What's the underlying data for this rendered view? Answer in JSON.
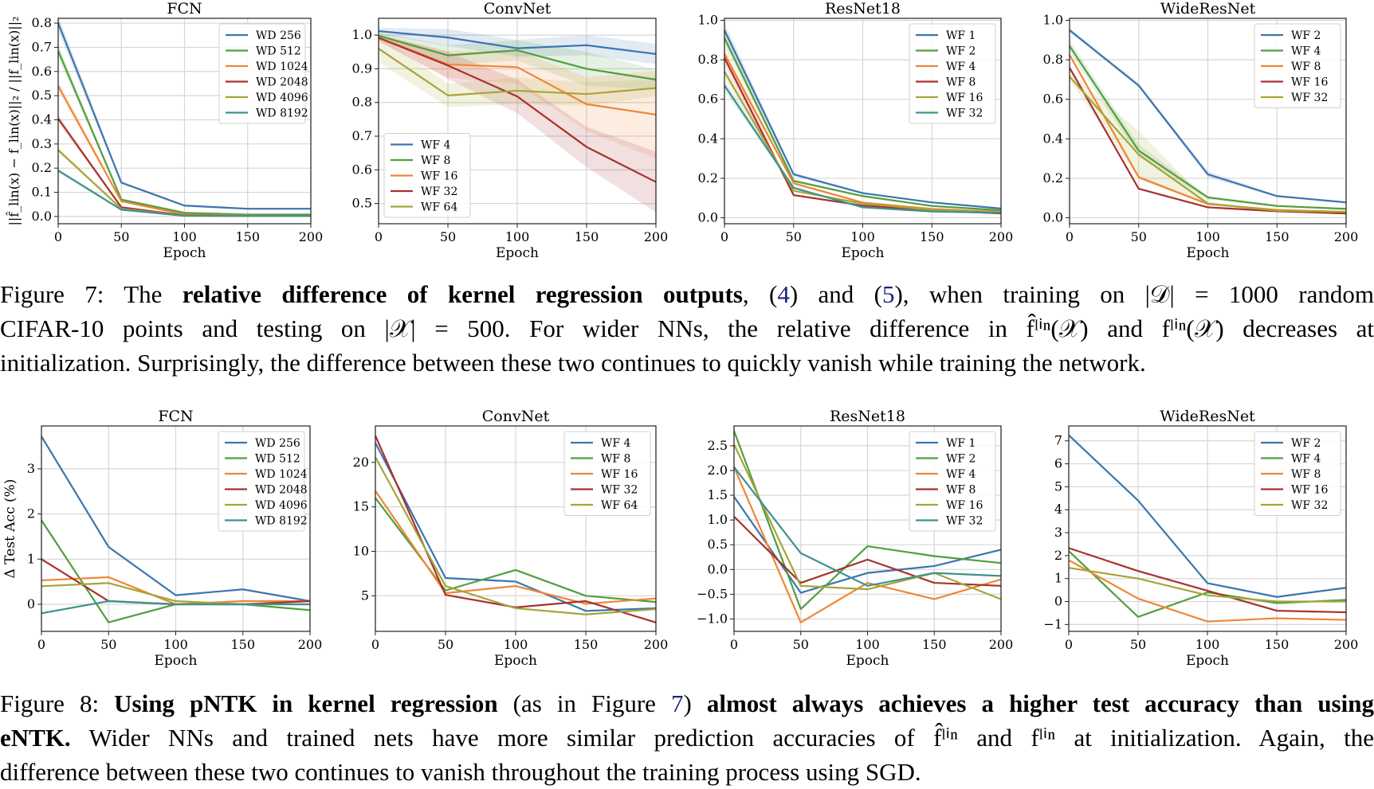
{
  "chart_data": [
    {
      "id": "fig7-fcn",
      "type": "line",
      "title": "FCN",
      "xlabel": "Epoch",
      "ylabel": "||f̂_lin(x) − f_lin(x)||₂ / ||f_lin(x)||₂",
      "x": [
        0,
        50,
        100,
        150,
        200
      ],
      "xlim": [
        0,
        200
      ],
      "ylim": [
        -0.03,
        0.82
      ],
      "xticks": [
        0,
        50,
        100,
        150,
        200
      ],
      "yticks": [
        0.0,
        0.1,
        0.2,
        0.3,
        0.4,
        0.5,
        0.6,
        0.7,
        0.8
      ],
      "ytick_labels": [
        "0.0",
        "0.1",
        "0.2",
        "0.3",
        "0.4",
        "0.5",
        "0.6",
        "0.7",
        "0.8"
      ],
      "grid": true,
      "legend": "top-right",
      "shaded_bands": true,
      "series": [
        {
          "name": "WD 256",
          "color": "#3b75af",
          "values": [
            0.8,
            0.14,
            0.045,
            0.032,
            0.032
          ]
        },
        {
          "name": "WD 512",
          "color": "#519e3e",
          "values": [
            0.685,
            0.07,
            0.015,
            0.008,
            0.008
          ]
        },
        {
          "name": "WD 1024",
          "color": "#ef8636",
          "values": [
            0.54,
            0.063,
            0.008,
            0.004,
            0.003
          ]
        },
        {
          "name": "WD 2048",
          "color": "#a8312d",
          "values": [
            0.405,
            0.038,
            0.004,
            0.002,
            0.002
          ]
        },
        {
          "name": "WD 4096",
          "color": "#a6a538",
          "values": [
            0.275,
            0.032,
            0.003,
            0.002,
            0.002
          ]
        },
        {
          "name": "WD 8192",
          "color": "#3d938d",
          "values": [
            0.19,
            0.028,
            0.003,
            0.002,
            0.002
          ]
        }
      ]
    },
    {
      "id": "fig7-convnet",
      "type": "line",
      "title": "ConvNet",
      "xlabel": "Epoch",
      "ylabel": "",
      "x": [
        0,
        50,
        100,
        150,
        200
      ],
      "xlim": [
        0,
        200
      ],
      "ylim": [
        0.44,
        1.05
      ],
      "xticks": [
        0,
        50,
        100,
        150,
        200
      ],
      "yticks": [
        0.5,
        0.6,
        0.7,
        0.8,
        0.9,
        1.0
      ],
      "ytick_labels": [
        "0.5",
        "0.6",
        "0.7",
        "0.8",
        "0.9",
        "1.0"
      ],
      "grid": true,
      "legend": "bottom-left",
      "shaded_bands": true,
      "series": [
        {
          "name": "WF 4",
          "color": "#3b75af",
          "values": [
            1.012,
            0.993,
            0.961,
            0.97,
            0.944
          ],
          "band": [
            0.01,
            0.025,
            0.025,
            0.03,
            0.03
          ]
        },
        {
          "name": "WF 8",
          "color": "#519e3e",
          "values": [
            0.998,
            0.94,
            0.955,
            0.9,
            0.868
          ],
          "band": [
            0.01,
            0.03,
            0.03,
            0.05,
            0.03
          ]
        },
        {
          "name": "WF 16",
          "color": "#ef8636",
          "values": [
            0.993,
            0.913,
            0.905,
            0.795,
            0.764
          ],
          "band": [
            0.01,
            0.04,
            0.05,
            0.08,
            0.13
          ]
        },
        {
          "name": "WF 32",
          "color": "#a8312d",
          "values": [
            0.992,
            0.91,
            0.818,
            0.668,
            0.564
          ],
          "band": [
            0.01,
            0.04,
            0.05,
            0.06,
            0.09
          ]
        },
        {
          "name": "WF 64",
          "color": "#a6a538",
          "values": [
            0.96,
            0.821,
            0.835,
            0.825,
            0.843
          ],
          "band": [
            0.04,
            0.035,
            0.04,
            0.035,
            0.025
          ]
        }
      ]
    },
    {
      "id": "fig7-resnet18",
      "type": "line",
      "title": "ResNet18",
      "xlabel": "Epoch",
      "ylabel": "",
      "x": [
        0,
        50,
        100,
        150,
        200
      ],
      "xlim": [
        0,
        200
      ],
      "ylim": [
        -0.03,
        1.01
      ],
      "xticks": [
        0,
        50,
        100,
        150,
        200
      ],
      "yticks": [
        0.0,
        0.2,
        0.4,
        0.6,
        0.8,
        1.0
      ],
      "ytick_labels": [
        "0.0",
        "0.2",
        "0.4",
        "0.6",
        "0.8",
        "1.0"
      ],
      "grid": true,
      "legend": "top-right",
      "shaded_bands": true,
      "series": [
        {
          "name": "WF 1",
          "color": "#3b75af",
          "values": [
            0.95,
            0.22,
            0.125,
            0.078,
            0.047
          ]
        },
        {
          "name": "WF 2",
          "color": "#519e3e",
          "values": [
            0.91,
            0.187,
            0.11,
            0.06,
            0.038
          ]
        },
        {
          "name": "WF 4",
          "color": "#ef8636",
          "values": [
            0.83,
            0.175,
            0.077,
            0.045,
            0.03
          ]
        },
        {
          "name": "WF 8",
          "color": "#a8312d",
          "values": [
            0.81,
            0.115,
            0.062,
            0.038,
            0.022
          ]
        },
        {
          "name": "WF 16",
          "color": "#a6a538",
          "values": [
            0.74,
            0.137,
            0.072,
            0.04,
            0.027
          ]
        },
        {
          "name": "WF 32",
          "color": "#3d938d",
          "values": [
            0.67,
            0.152,
            0.053,
            0.032,
            0.025
          ]
        }
      ]
    },
    {
      "id": "fig7-wideresnet",
      "type": "line",
      "title": "WideResNet",
      "xlabel": "Epoch",
      "ylabel": "",
      "x": [
        0,
        50,
        100,
        150,
        200
      ],
      "xlim": [
        0,
        200
      ],
      "ylim": [
        -0.03,
        1.01
      ],
      "xticks": [
        0,
        50,
        100,
        150,
        200
      ],
      "yticks": [
        0.0,
        0.2,
        0.4,
        0.6,
        0.8,
        1.0
      ],
      "ytick_labels": [
        "0.0",
        "0.2",
        "0.4",
        "0.6",
        "0.8",
        "1.0"
      ],
      "grid": true,
      "legend": "top-right",
      "shaded_bands": true,
      "series": [
        {
          "name": "WF 2",
          "color": "#3b75af",
          "values": [
            0.95,
            0.67,
            0.22,
            0.11,
            0.078
          ],
          "band": [
            0.01,
            0.01,
            0.015,
            0.005,
            0.005
          ]
        },
        {
          "name": "WF 4",
          "color": "#519e3e",
          "values": [
            0.87,
            0.34,
            0.103,
            0.06,
            0.045
          ],
          "band": [
            0.03,
            0.03,
            0.01,
            0.005,
            0.005
          ]
        },
        {
          "name": "WF 8",
          "color": "#ef8636",
          "values": [
            0.825,
            0.205,
            0.07,
            0.04,
            0.03
          ],
          "band": [
            0.01,
            0.01,
            0.005,
            0.003,
            0.003
          ]
        },
        {
          "name": "WF 16",
          "color": "#a8312d",
          "values": [
            0.76,
            0.147,
            0.053,
            0.033,
            0.022
          ],
          "band": [
            0.01,
            0.005,
            0.003,
            0.002,
            0.002
          ]
        },
        {
          "name": "WF 32",
          "color": "#a6a538",
          "values": [
            0.715,
            0.32,
            0.072,
            0.036,
            0.03
          ],
          "band": [
            0.02,
            0.12,
            0.01,
            0.003,
            0.003
          ]
        }
      ]
    },
    {
      "id": "fig8-fcn",
      "type": "line",
      "title": "FCN",
      "xlabel": "Epoch",
      "ylabel": "Δ Test Acc (%)",
      "x": [
        0,
        50,
        100,
        150,
        200
      ],
      "xlim": [
        0,
        200
      ],
      "ylim": [
        -0.6,
        3.95
      ],
      "xticks": [
        0,
        50,
        100,
        150,
        200
      ],
      "yticks": [
        0,
        1,
        2,
        3
      ],
      "ytick_labels": [
        "0",
        "1",
        "2",
        "3"
      ],
      "grid": true,
      "legend": "top-right",
      "shaded_bands": false,
      "series": [
        {
          "name": "WD 256",
          "color": "#3b75af",
          "values": [
            3.72,
            1.27,
            0.2,
            0.33,
            0.07
          ]
        },
        {
          "name": "WD 512",
          "color": "#519e3e",
          "values": [
            1.86,
            -0.4,
            0.0,
            0.0,
            -0.13
          ]
        },
        {
          "name": "WD 1024",
          "color": "#ef8636",
          "values": [
            0.53,
            0.6,
            0.0,
            0.07,
            0.07
          ]
        },
        {
          "name": "WD 2048",
          "color": "#a8312d",
          "values": [
            1.0,
            0.07,
            0.0,
            0.0,
            0.07
          ]
        },
        {
          "name": "WD 4096",
          "color": "#a6a538",
          "values": [
            0.4,
            0.47,
            0.07,
            0.0,
            0.0
          ]
        },
        {
          "name": "WD 8192",
          "color": "#3d938d",
          "values": [
            -0.2,
            0.07,
            0.0,
            0.0,
            0.0
          ]
        }
      ]
    },
    {
      "id": "fig8-convnet",
      "type": "line",
      "title": "ConvNet",
      "xlabel": "Epoch",
      "ylabel": "",
      "x": [
        0,
        50,
        100,
        150,
        200
      ],
      "xlim": [
        0,
        200
      ],
      "ylim": [
        1.0,
        24.1
      ],
      "xticks": [
        0,
        50,
        100,
        150,
        200
      ],
      "yticks": [
        5,
        10,
        15,
        20
      ],
      "ytick_labels": [
        "5",
        "10",
        "15",
        "20"
      ],
      "grid": true,
      "legend": "top-right",
      "shaded_bands": false,
      "series": [
        {
          "name": "WF 4",
          "color": "#3b75af",
          "values": [
            22.2,
            7.0,
            6.6,
            3.3,
            3.6
          ]
        },
        {
          "name": "WF 8",
          "color": "#519e3e",
          "values": [
            16.0,
            5.6,
            7.9,
            5.0,
            4.3
          ]
        },
        {
          "name": "WF 16",
          "color": "#ef8636",
          "values": [
            16.8,
            5.3,
            6.1,
            4.1,
            4.7
          ]
        },
        {
          "name": "WF 32",
          "color": "#a8312d",
          "values": [
            23.0,
            5.1,
            3.7,
            4.4,
            2.0
          ]
        },
        {
          "name": "WF 64",
          "color": "#a6a538",
          "values": [
            20.6,
            6.1,
            3.6,
            2.9,
            3.5
          ]
        }
      ]
    },
    {
      "id": "fig8-resnet18",
      "type": "line",
      "title": "ResNet18",
      "xlabel": "Epoch",
      "ylabel": "",
      "x": [
        0,
        50,
        100,
        150,
        200
      ],
      "xlim": [
        0,
        200
      ],
      "ylim": [
        -1.25,
        2.9
      ],
      "xticks": [
        0,
        50,
        100,
        150,
        200
      ],
      "yticks": [
        -1.0,
        -0.5,
        0.0,
        0.5,
        1.0,
        1.5,
        2.0,
        2.5
      ],
      "ytick_labels": [
        "−1.0",
        "−0.5",
        "0.0",
        "0.5",
        "1.0",
        "1.5",
        "2.0",
        "2.5"
      ],
      "grid": true,
      "legend": "top-right",
      "shaded_bands": false,
      "series": [
        {
          "name": "WF 1",
          "color": "#3b75af",
          "values": [
            1.47,
            -0.47,
            -0.07,
            0.07,
            0.4
          ]
        },
        {
          "name": "WF 2",
          "color": "#519e3e",
          "values": [
            2.8,
            -0.8,
            0.47,
            0.27,
            0.13
          ]
        },
        {
          "name": "WF 4",
          "color": "#ef8636",
          "values": [
            2.07,
            -1.07,
            -0.27,
            -0.6,
            -0.2
          ]
        },
        {
          "name": "WF 8",
          "color": "#a8312d",
          "values": [
            1.07,
            -0.27,
            0.2,
            -0.27,
            -0.33
          ]
        },
        {
          "name": "WF 16",
          "color": "#a6a538",
          "values": [
            2.53,
            -0.33,
            -0.4,
            -0.07,
            -0.6
          ]
        },
        {
          "name": "WF 32",
          "color": "#3d938d",
          "values": [
            2.07,
            0.33,
            -0.33,
            -0.07,
            -0.13
          ]
        }
      ]
    },
    {
      "id": "fig8-wideresnet",
      "type": "line",
      "title": "WideResNet",
      "xlabel": "Epoch",
      "ylabel": "",
      "x": [
        0,
        50,
        100,
        150,
        200
      ],
      "xlim": [
        0,
        200
      ],
      "ylim": [
        -1.3,
        7.65
      ],
      "xticks": [
        0,
        50,
        100,
        150,
        200
      ],
      "yticks": [
        -1,
        0,
        1,
        2,
        3,
        4,
        5,
        6,
        7
      ],
      "ytick_labels": [
        "−1",
        "0",
        "1",
        "2",
        "3",
        "4",
        "5",
        "6",
        "7"
      ],
      "grid": true,
      "legend": "top-right",
      "shaded_bands": false,
      "series": [
        {
          "name": "WF 2",
          "color": "#3b75af",
          "values": [
            7.25,
            4.4,
            0.8,
            0.2,
            0.6
          ]
        },
        {
          "name": "WF 4",
          "color": "#519e3e",
          "values": [
            2.2,
            -0.67,
            0.4,
            -0.07,
            0.07
          ]
        },
        {
          "name": "WF 8",
          "color": "#ef8636",
          "values": [
            1.8,
            0.13,
            -0.87,
            -0.73,
            -0.8
          ]
        },
        {
          "name": "WF 16",
          "color": "#a8312d",
          "values": [
            2.33,
            1.33,
            0.47,
            -0.4,
            -0.47
          ]
        },
        {
          "name": "WF 32",
          "color": "#a6a538",
          "values": [
            1.47,
            1.0,
            0.27,
            0.0,
            0.0
          ]
        }
      ]
    }
  ],
  "captions": {
    "fig7": {
      "label": "Figure 7:",
      "l1_a": " The ",
      "l1_bold": "relative difference of kernel regression outputs",
      "l1_b": ", (",
      "l1_ref1": "4",
      "l1_c": ") and (",
      "l1_ref2": "5",
      "l1_d": "), when training on |𝒟| = 1000 random",
      "l2": "CIFAR-10 points and testing on |𝒳| = 500. For wider NNs, the relative difference in f̂ˡⁱⁿ(𝒳) and fˡⁱⁿ(𝒳) decreases at",
      "l3": "initialization. Surprisingly, the difference between these two continues to quickly vanish while training the network."
    },
    "fig8": {
      "label": "Figure 8: ",
      "l1_bold1": "Using pNTK in kernel regression",
      "l1_a": " (as in Figure ",
      "l1_ref": "7",
      "l1_b": ") ",
      "l1_bold2": "almost always achieves a higher test accuracy than using",
      "l2_bold": "eNTK.",
      "l2": " Wider NNs and trained nets have more similar prediction accuracies of f̂ˡⁱⁿ and fˡⁱⁿ at initialization. Again, the",
      "l3": "difference between these two continues to vanish throughout the training process using SGD."
    }
  }
}
